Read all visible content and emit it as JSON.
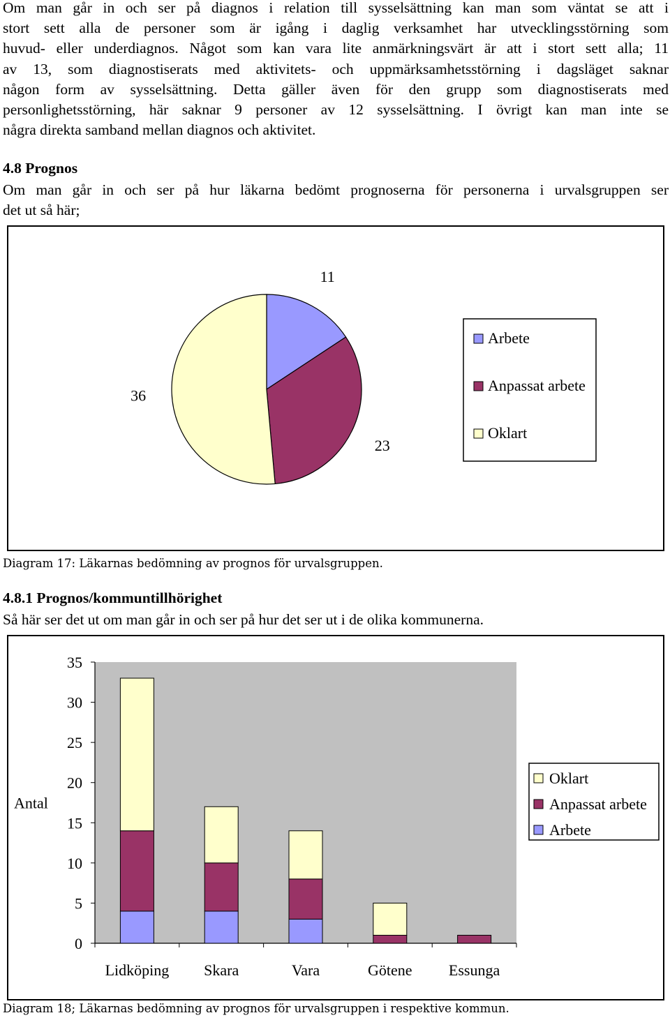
{
  "intro_lines": [
    "Om man går in och ser på diagnos i relation till sysselsättning kan man som väntat se att i",
    "stort sett alla de personer som är igång i daglig verksamhet har utvecklingsstörning som",
    "huvud- eller underdiagnos. Något som kan vara lite anmärkningsvärt är att i stort sett alla; 11",
    "av 13, som diagnostiserats med aktivitets- och uppmärksamhetsstörning i dagsläget saknar",
    "någon form av sysselsättning. Detta gäller även för den grupp som diagnostiserats med",
    "personlighetsstörning, här saknar 9 personer av 12 sysselsättning. I övrigt kan man inte se",
    "några direkta samband mellan diagnos och aktivitet."
  ],
  "section_48": {
    "heading": "4.8 Prognos",
    "lines": [
      "Om man går in och ser på hur läkarna bedömt prognoserna för personerna i urvalsgruppen ser",
      "det ut så här;"
    ]
  },
  "caption_17": "Diagram 17: Läkarnas bedömning av prognos för urvalsgruppen.",
  "section_481": {
    "heading": "4.8.1 Prognos/kommuntillhörighet",
    "lines": [
      "Så här ser det ut om man går in och ser på hur det ser ut i de olika kommunerna."
    ]
  },
  "caption_18": "Diagram 18; Läkarnas bedömning av prognos för urvalsgruppen i respektive kommun.",
  "colors": {
    "arbete": "#9999ff",
    "anpassat": "#993366",
    "oklart": "#ffffcc",
    "plot_bg": "#c0c0c0"
  },
  "chart_data": [
    {
      "type": "pie",
      "title": "",
      "labels": [
        "Arbete",
        "Anpassat arbete",
        "Oklart"
      ],
      "values": [
        11,
        23,
        36
      ],
      "legend": "right"
    },
    {
      "type": "bar",
      "stacked": true,
      "title": "",
      "xlabel": "",
      "ylabel": "Antal",
      "categories": [
        "Lidköping",
        "Skara",
        "Vara",
        "Götene",
        "Essunga"
      ],
      "series": [
        {
          "name": "Arbete",
          "values": [
            4,
            4,
            3,
            0,
            0
          ]
        },
        {
          "name": "Anpassat arbete",
          "values": [
            10,
            6,
            5,
            1,
            1
          ]
        },
        {
          "name": "Oklart",
          "values": [
            19,
            7,
            6,
            4,
            0
          ]
        }
      ],
      "ylim": [
        0,
        35
      ],
      "yticks": [
        0,
        5,
        10,
        15,
        20,
        25,
        30,
        35
      ],
      "legend": "right",
      "legend_order": [
        "Oklart",
        "Anpassat arbete",
        "Arbete"
      ],
      "grid": false
    }
  ]
}
